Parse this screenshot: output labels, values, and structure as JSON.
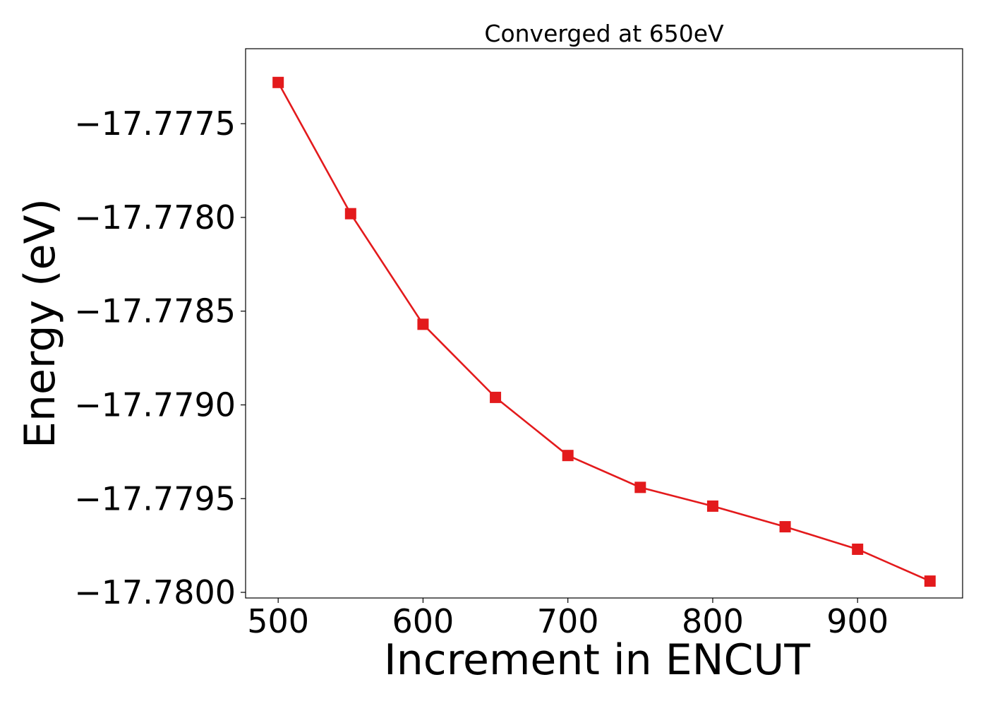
{
  "chart_data": {
    "type": "line",
    "title": "Converged at 650eV",
    "xlabel": "Increment in ENCUT",
    "ylabel": "Energy (eV)",
    "x": [
      500,
      550,
      600,
      650,
      700,
      750,
      800,
      850,
      900,
      950
    ],
    "series": [
      {
        "values": [
          -17.77728,
          -17.77798,
          -17.77857,
          -17.77896,
          -17.77927,
          -17.77944,
          -17.77954,
          -17.77965,
          -17.77977,
          -17.77994
        ],
        "color": "#e31a1c",
        "marker": "square"
      }
    ],
    "xticks": [
      500,
      600,
      700,
      800,
      900
    ],
    "xtick_labels": [
      "500",
      "600",
      "700",
      "800",
      "900"
    ],
    "yticks": [
      -17.7775,
      -17.778,
      -17.7785,
      -17.779,
      -17.7795,
      -17.78
    ],
    "ytick_labels": [
      "−17.7775",
      "−17.7780",
      "−17.7785",
      "−17.7790",
      "−17.7795",
      "−17.7800"
    ],
    "xlim": [
      477.5,
      972.5
    ],
    "ylim": [
      -17.78003,
      -17.7771
    ],
    "grid": false,
    "legend": false
  }
}
